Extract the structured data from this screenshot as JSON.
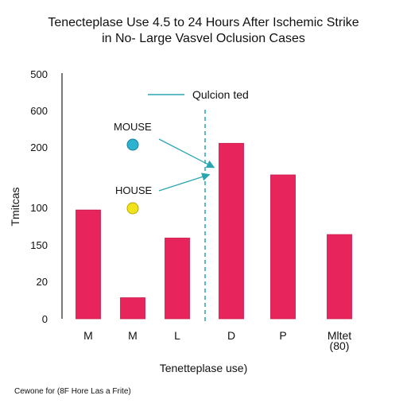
{
  "chart_data": {
    "type": "bar",
    "title": "Tenecteplase Use 4.5 to 24 Hours After Ischemic Strike",
    "subtitle": "in No- Large Vasvel Oclusion Cases",
    "xlabel": "Tenetteplase use)",
    "ylabel": "Tmitcas",
    "y_tick_labels": [
      "0",
      "20",
      "150",
      "100",
      "",
      "200",
      "600",
      "500"
    ],
    "categories": [
      {
        "label": "M",
        "sublabel": ""
      },
      {
        "label": "M",
        "sublabel": ""
      },
      {
        "label": "L",
        "sublabel": ""
      },
      {
        "label": "D",
        "sublabel": ""
      },
      {
        "label": "P",
        "sublabel": ""
      },
      {
        "label": "Mltet",
        "sublabel": "(80)"
      }
    ],
    "values": [
      3.1,
      0.6,
      2.3,
      5.0,
      4.1,
      2.4
    ],
    "ylim": [
      0,
      7
    ],
    "bar_color": "#e8245c",
    "legend": {
      "label": "Qulcion ted",
      "color": "#2aa6b0",
      "style": "solid-line"
    },
    "vline": {
      "after_category": 2,
      "color": "#2aa6b0",
      "style": "dashed"
    },
    "annotations": [
      {
        "label": "MOUSE",
        "marker_color": "#2bb3d1"
      },
      {
        "label": "HOUSE",
        "marker_color": "#f2e21a"
      }
    ],
    "footer": "Cewone for (8F Hore Las a Frite)"
  }
}
